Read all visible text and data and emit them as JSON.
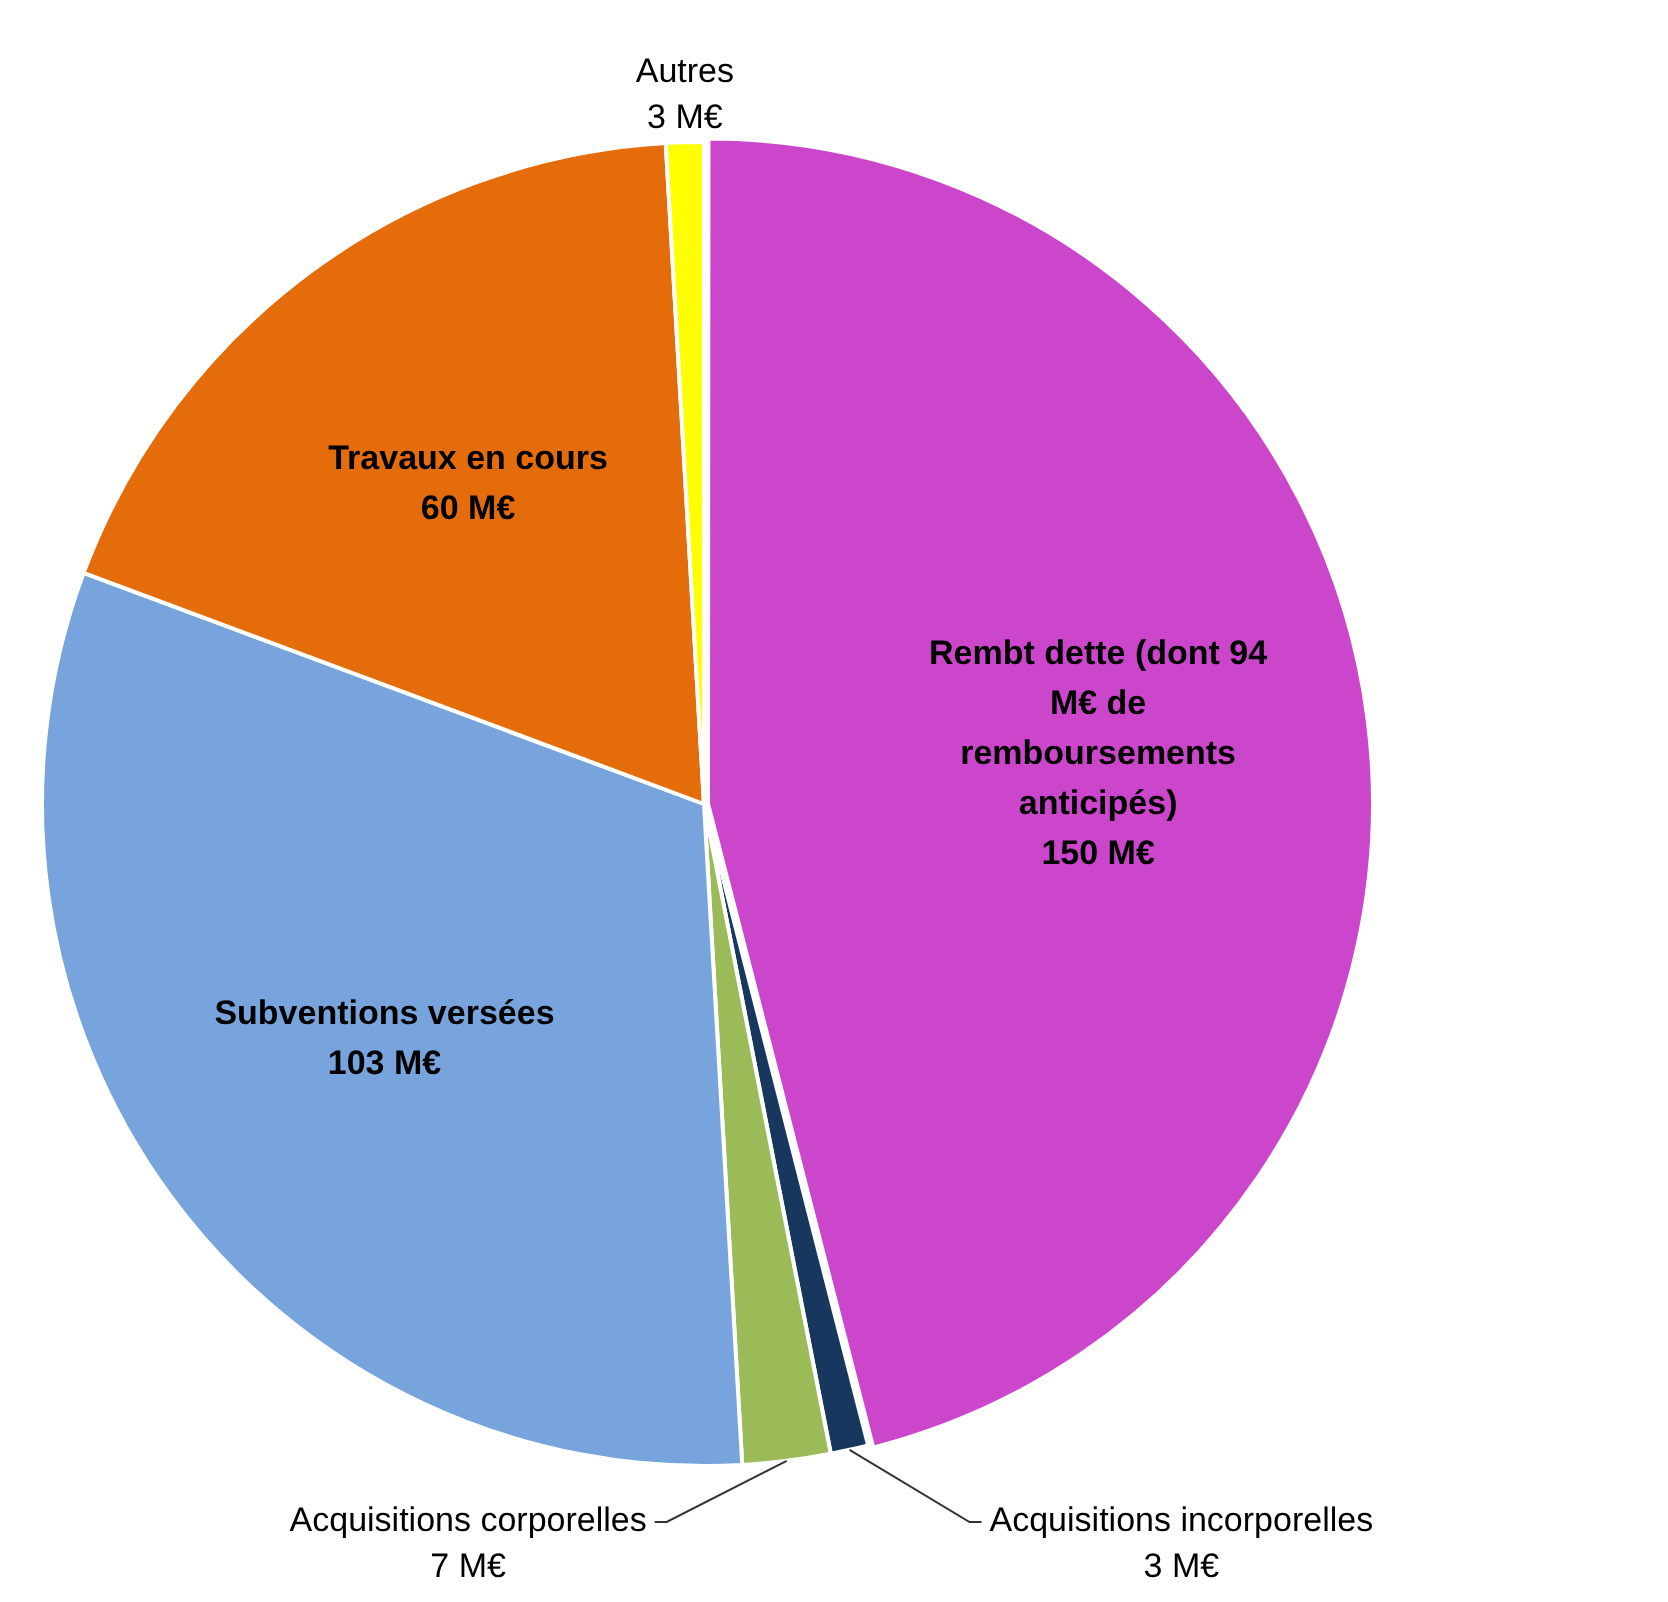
{
  "chart_data": {
    "type": "pie",
    "categories": [
      "Rembt dette (dont 94 M€ de remboursements anticipés)",
      "Acquisitions incorporelles",
      "Acquisitions corporelles",
      "Subventions versées",
      "Travaux en cours",
      "Autres"
    ],
    "values": [
      150,
      3,
      7,
      103,
      60,
      3
    ],
    "value_labels": [
      "150 M€",
      "3 M€",
      "7 M€",
      "103 M€",
      "60 M€",
      "3 M€"
    ],
    "colors": [
      "#cc46cc",
      "#17375e",
      "#9bbb59",
      "#77a4dc",
      "#e46c0a",
      "#ffff00"
    ]
  }
}
